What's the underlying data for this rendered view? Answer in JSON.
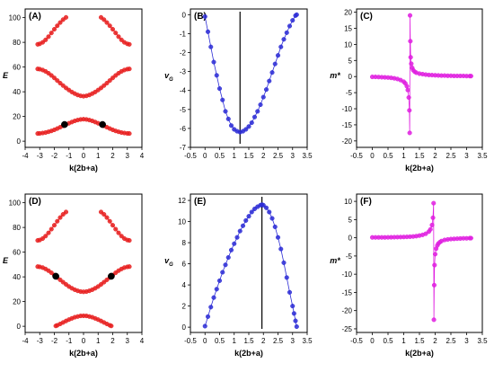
{
  "chart_data": [
    {
      "panel_label": "(A)",
      "type": "scatter",
      "xlabel": "k(2b+a)",
      "ylabel": "E",
      "xlim": [
        -4,
        4
      ],
      "ylim": [
        -5,
        107
      ],
      "xticks": [
        -4,
        -3,
        -2,
        -1,
        0,
        1,
        2,
        3,
        4
      ],
      "yticks": [
        0,
        20,
        40,
        60,
        80,
        100
      ],
      "series": [
        {
          "color": "#e82020",
          "x": [
            -3.14,
            -3.0,
            -2.8,
            -2.6,
            -2.4,
            -2.2,
            -2.0,
            -1.8,
            -1.6,
            -1.4,
            -1.2,
            -1.0,
            -0.8,
            -0.6,
            -0.4,
            -0.2,
            0.0,
            0.2,
            0.4,
            0.6,
            0.8,
            1.0,
            1.2,
            1.4,
            1.6,
            1.8,
            2.0,
            2.2,
            2.4,
            2.6,
            2.8,
            3.0,
            3.14
          ],
          "y": [
            6.2,
            6.3,
            6.6,
            7.0,
            7.6,
            8.3,
            9.2,
            10.2,
            11.3,
            12.4,
            13.5,
            14.5,
            15.5,
            16.4,
            17.1,
            17.6,
            17.8,
            17.6,
            17.1,
            16.4,
            15.5,
            14.5,
            13.5,
            12.4,
            11.3,
            10.2,
            9.2,
            8.3,
            7.6,
            7.0,
            6.6,
            6.3,
            6.2
          ]
        },
        {
          "color": "#e82020",
          "x": [
            -3.14,
            -3.0,
            -2.8,
            -2.6,
            -2.4,
            -2.2,
            -2.0,
            -1.8,
            -1.6,
            -1.4,
            -1.2,
            -1.0,
            -0.8,
            -0.6,
            -0.4,
            -0.2,
            0.0,
            0.2,
            0.4,
            0.6,
            0.8,
            1.0,
            1.2,
            1.4,
            1.6,
            1.8,
            2.0,
            2.2,
            2.4,
            2.6,
            2.8,
            3.0,
            3.14
          ],
          "y": [
            58.5,
            58.3,
            57.6,
            56.5,
            55.0,
            53.2,
            51.2,
            49.1,
            47.0,
            45.0,
            43.1,
            41.4,
            39.8,
            38.5,
            37.4,
            36.7,
            36.4,
            36.7,
            37.4,
            38.5,
            39.8,
            41.4,
            43.1,
            45.0,
            47.0,
            49.1,
            51.2,
            53.2,
            55.0,
            56.5,
            57.6,
            58.3,
            58.5
          ]
        },
        {
          "color": "#e82020",
          "x": [
            -3.14,
            -3.0,
            -2.8,
            -2.6,
            -2.4,
            -2.2,
            -2.0,
            -1.8,
            -1.6,
            -1.4,
            -1.2,
            1.2,
            1.4,
            1.6,
            1.8,
            2.0,
            2.2,
            2.4,
            2.6,
            2.8,
            3.0,
            3.14
          ],
          "y": [
            78.4,
            78.8,
            80.0,
            82.0,
            84.6,
            87.6,
            90.6,
            93.4,
            96.0,
            98.4,
            100.2,
            100.2,
            98.4,
            96.0,
            93.4,
            90.6,
            87.6,
            84.6,
            82.0,
            80.0,
            78.8,
            78.4
          ]
        },
        {
          "color": "#000000",
          "marker": "large",
          "x": [
            -1.3,
            1.3
          ],
          "y": [
            13.5,
            13.5
          ]
        }
      ]
    },
    {
      "panel_label": "(B)",
      "type": "scatter",
      "xlabel": "",
      "ylabel": "v_G",
      "xlim": [
        -0.5,
        3.5
      ],
      "ylim": [
        -7,
        0.3
      ],
      "xticks": [
        -0.5,
        0.0,
        0.5,
        1.0,
        1.5,
        2.0,
        2.5,
        3.0,
        3.5
      ],
      "yticks": [
        0,
        -1,
        -2,
        -3,
        -4,
        -5,
        -6,
        -7
      ],
      "vline": 1.2,
      "series": [
        {
          "color": "#2d2dd6",
          "x": [
            0.0,
            0.1,
            0.2,
            0.3,
            0.4,
            0.5,
            0.6,
            0.7,
            0.8,
            0.9,
            1.0,
            1.1,
            1.2,
            1.3,
            1.4,
            1.5,
            1.6,
            1.7,
            1.8,
            1.9,
            2.0,
            2.1,
            2.2,
            2.3,
            2.4,
            2.5,
            2.6,
            2.7,
            2.8,
            2.9,
            3.0,
            3.1,
            3.14
          ],
          "y": [
            -0.1,
            -0.9,
            -1.7,
            -2.5,
            -3.2,
            -3.9,
            -4.5,
            -5.1,
            -5.5,
            -5.85,
            -6.05,
            -6.15,
            -6.2,
            -6.15,
            -6.05,
            -5.9,
            -5.7,
            -5.4,
            -5.1,
            -4.75,
            -4.35,
            -3.95,
            -3.5,
            -3.05,
            -2.6,
            -2.15,
            -1.7,
            -1.3,
            -0.95,
            -0.6,
            -0.3,
            -0.05,
            0.0
          ]
        }
      ]
    },
    {
      "panel_label": "(C)",
      "type": "scatter",
      "xlabel": "k(2b+a)",
      "ylabel": "m*",
      "xlim": [
        -0.5,
        3.5
      ],
      "ylim": [
        -22,
        21
      ],
      "xticks": [
        -0.5,
        0.0,
        0.5,
        1.0,
        1.5,
        2.0,
        2.5,
        3.0,
        3.5
      ],
      "yticks": [
        20,
        15,
        10,
        5,
        0,
        -5,
        -10,
        -15,
        -20
      ],
      "series": [
        {
          "color": "#e020e0",
          "x": [
            0.0,
            0.1,
            0.2,
            0.3,
            0.4,
            0.5,
            0.6,
            0.7,
            0.8,
            0.9,
            1.0,
            1.05,
            1.1,
            1.13,
            1.16,
            1.18,
            1.19,
            1.2,
            1.21,
            1.22,
            1.24,
            1.27,
            1.3,
            1.35,
            1.4,
            1.5,
            1.6,
            1.7,
            1.8,
            1.9,
            2.0,
            2.1,
            2.2,
            2.3,
            2.4,
            2.5,
            2.6,
            2.7,
            2.8,
            2.9,
            3.0,
            3.1,
            3.14
          ],
          "y": [
            -0.1,
            -0.1,
            -0.15,
            -0.2,
            -0.25,
            -0.3,
            -0.4,
            -0.55,
            -0.75,
            -1.1,
            -1.6,
            -2.1,
            -3.0,
            -4.2,
            -6.5,
            -10.5,
            -17.5,
            19.0,
            11.0,
            6.0,
            4.0,
            2.7,
            2.0,
            1.5,
            1.2,
            0.9,
            0.75,
            0.6,
            0.5,
            0.45,
            0.4,
            0.35,
            0.3,
            0.3,
            0.25,
            0.25,
            0.2,
            0.2,
            0.2,
            0.2,
            0.15,
            0.15,
            0.15
          ]
        }
      ]
    },
    {
      "panel_label": "(D)",
      "type": "scatter",
      "xlabel": "k(2b+a)",
      "ylabel": "E",
      "xlim": [
        -4,
        4
      ],
      "ylim": [
        -5,
        107
      ],
      "xticks": [
        -4,
        -3,
        -2,
        -1,
        0,
        1,
        2,
        3,
        4
      ],
      "yticks": [
        0,
        20,
        40,
        60,
        80,
        100
      ],
      "series": [
        {
          "color": "#e82020",
          "x": [
            -1.9,
            -1.8,
            -1.6,
            -1.4,
            -1.2,
            -1.0,
            -0.8,
            -0.6,
            -0.4,
            -0.2,
            0.0,
            0.2,
            0.4,
            0.6,
            0.8,
            1.0,
            1.2,
            1.4,
            1.6,
            1.8,
            1.9
          ],
          "y": [
            0.3,
            0.8,
            1.9,
            3.1,
            4.3,
            5.4,
            6.4,
            7.3,
            7.9,
            8.4,
            8.5,
            8.4,
            7.9,
            7.3,
            6.4,
            5.4,
            4.3,
            3.1,
            1.9,
            0.8,
            0.3
          ]
        },
        {
          "color": "#e82020",
          "x": [
            -3.14,
            -3.0,
            -2.8,
            -2.6,
            -2.4,
            -2.2,
            -2.0,
            -1.8,
            -1.6,
            -1.4,
            -1.2,
            -1.0,
            -0.8,
            -0.6,
            -0.4,
            -0.2,
            0.0,
            0.2,
            0.4,
            0.6,
            0.8,
            1.0,
            1.2,
            1.4,
            1.6,
            1.8,
            2.0,
            2.2,
            2.4,
            2.6,
            2.8,
            3.0,
            3.14
          ],
          "y": [
            48.3,
            48.1,
            47.5,
            46.4,
            45.0,
            43.3,
            41.4,
            39.5,
            37.6,
            35.7,
            33.9,
            32.2,
            30.8,
            29.6,
            28.7,
            28.1,
            27.9,
            28.1,
            28.7,
            29.6,
            30.8,
            32.2,
            33.9,
            35.7,
            37.6,
            39.5,
            41.4,
            43.3,
            45.0,
            46.4,
            47.5,
            48.1,
            48.3
          ]
        },
        {
          "color": "#e82020",
          "x": [
            -3.14,
            -3.0,
            -2.8,
            -2.6,
            -2.4,
            -2.2,
            -2.0,
            -1.8,
            -1.6,
            -1.4,
            -1.2,
            1.2,
            1.4,
            1.6,
            1.8,
            2.0,
            2.2,
            2.4,
            2.6,
            2.8,
            3.0,
            3.14
          ],
          "y": [
            69.5,
            69.8,
            71.0,
            73.0,
            75.6,
            78.6,
            81.8,
            85.0,
            88.0,
            90.6,
            92.5,
            92.5,
            90.6,
            88.0,
            85.0,
            81.8,
            78.6,
            75.6,
            73.0,
            71.0,
            69.8,
            69.5
          ]
        },
        {
          "color": "#000000",
          "marker": "large",
          "x": [
            -1.9,
            1.9
          ],
          "y": [
            40.5,
            40.5
          ]
        }
      ]
    },
    {
      "panel_label": "(E)",
      "type": "scatter",
      "xlabel": "k(2b+a)",
      "ylabel": "v_G",
      "xlim": [
        -0.5,
        3.5
      ],
      "ylim": [
        -0.5,
        12.6
      ],
      "xticks": [
        -0.5,
        0.0,
        0.5,
        1.0,
        1.5,
        2.0,
        2.5,
        3.0,
        3.5
      ],
      "yticks": [
        0,
        2,
        4,
        6,
        8,
        10,
        12
      ],
      "vline": 1.95,
      "series": [
        {
          "color": "#2d2dd6",
          "x": [
            0.0,
            0.1,
            0.2,
            0.3,
            0.4,
            0.5,
            0.6,
            0.7,
            0.8,
            0.9,
            1.0,
            1.1,
            1.2,
            1.3,
            1.4,
            1.5,
            1.6,
            1.7,
            1.8,
            1.9,
            1.95,
            2.0,
            2.1,
            2.2,
            2.3,
            2.4,
            2.5,
            2.6,
            2.7,
            2.8,
            2.9,
            3.0,
            3.05,
            3.1,
            3.14
          ],
          "y": [
            0.1,
            1.0,
            1.9,
            2.8,
            3.6,
            4.4,
            5.2,
            5.9,
            6.6,
            7.3,
            7.9,
            8.5,
            9.1,
            9.6,
            10.1,
            10.5,
            10.9,
            11.2,
            11.4,
            11.55,
            11.6,
            11.55,
            11.3,
            10.9,
            10.3,
            9.5,
            8.5,
            7.4,
            6.1,
            4.7,
            3.3,
            2.0,
            1.3,
            0.6,
            0.05
          ]
        }
      ]
    },
    {
      "panel_label": "(F)",
      "type": "scatter",
      "xlabel": "k(2b+a)",
      "ylabel": "m*",
      "xlim": [
        -0.5,
        3.5
      ],
      "ylim": [
        -26,
        12
      ],
      "xticks": [
        -0.5,
        0.0,
        0.5,
        1.0,
        1.5,
        2.0,
        2.5,
        3.0,
        3.5
      ],
      "yticks": [
        10,
        5,
        0,
        -5,
        -10,
        -15,
        -20,
        -25
      ],
      "series": [
        {
          "color": "#e020e0",
          "x": [
            0.0,
            0.1,
            0.2,
            0.3,
            0.4,
            0.5,
            0.6,
            0.7,
            0.8,
            0.9,
            1.0,
            1.1,
            1.2,
            1.3,
            1.4,
            1.5,
            1.6,
            1.7,
            1.8,
            1.85,
            1.9,
            1.93,
            1.95,
            1.96,
            1.97,
            1.98,
            2.0,
            2.03,
            2.07,
            2.1,
            2.15,
            2.2,
            2.3,
            2.4,
            2.5,
            2.6,
            2.7,
            2.8,
            2.9,
            3.0,
            3.1,
            3.14
          ],
          "y": [
            0.1,
            0.1,
            0.1,
            0.1,
            0.1,
            0.12,
            0.14,
            0.16,
            0.18,
            0.2,
            0.22,
            0.25,
            0.3,
            0.35,
            0.45,
            0.6,
            0.8,
            1.1,
            1.7,
            2.3,
            3.5,
            5.5,
            9.5,
            -22.5,
            -13.0,
            -7.5,
            -4.5,
            -3.0,
            -2.1,
            -1.6,
            -1.2,
            -0.9,
            -0.6,
            -0.45,
            -0.35,
            -0.3,
            -0.25,
            -0.2,
            -0.15,
            -0.15,
            -0.1,
            -0.1
          ]
        }
      ]
    }
  ]
}
